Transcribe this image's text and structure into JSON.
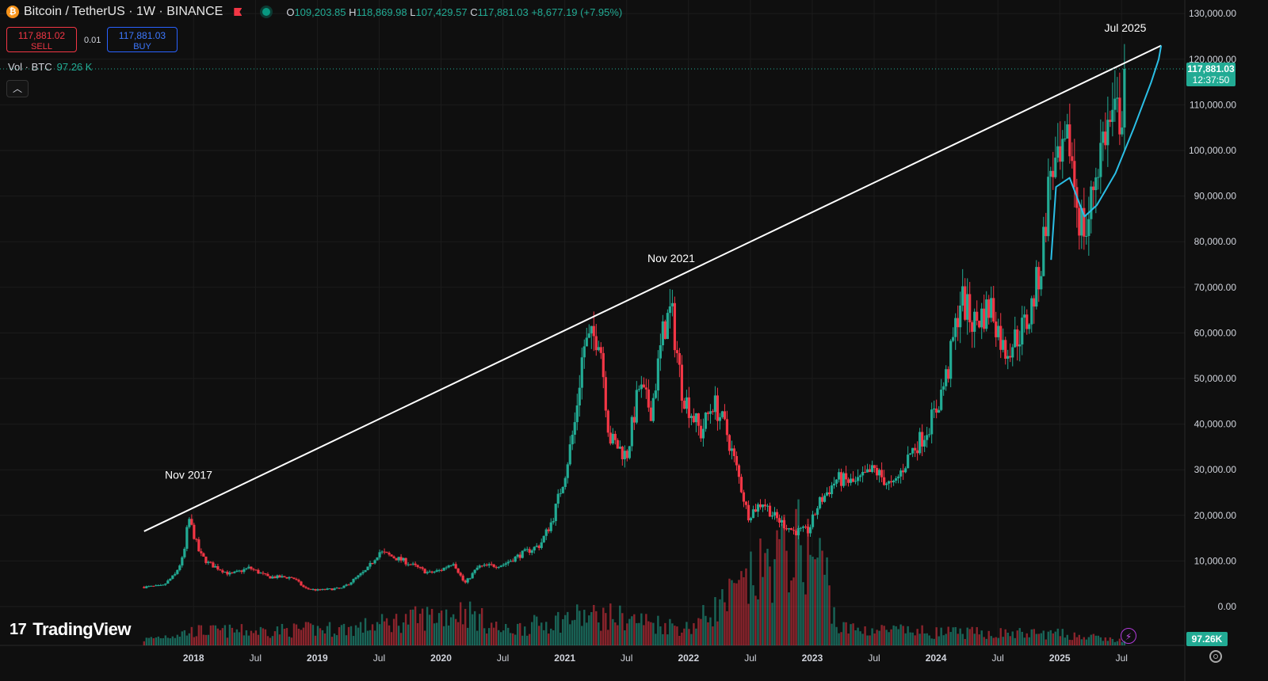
{
  "header": {
    "coin_icon": "bitcoin-icon",
    "symbol_title": "Bitcoin / TetherUS · 1W · BINANCE",
    "ohlc": {
      "o_label": "O",
      "o_value": "109,203.85",
      "h_label": "H",
      "h_value": "118,869.98",
      "l_label": "L",
      "l_value": "107,429.57",
      "c_label": "C",
      "c_value": "117,881.03",
      "change": "+8,677.19 (+7.95%)"
    }
  },
  "trade": {
    "sell_price": "117,881.02",
    "sell_label": "SELL",
    "spread": "0.01",
    "buy_price": "117,881.03",
    "buy_label": "BUY"
  },
  "volume_legend": {
    "label": "Vol · BTC",
    "value": "97.26 K"
  },
  "collapse_icon": "chevron-up-icon",
  "brand": "TradingView",
  "price_badge": {
    "price": "117,881.03",
    "countdown": "12:37:50"
  },
  "volume_badge": "97.26K",
  "colors": {
    "up": "#22ab94",
    "down": "#f23645",
    "trendline": "#ffffff",
    "curve": "#2bbfe6",
    "background": "#0f0f0f"
  },
  "chart_data": {
    "type": "candlestick",
    "title": "Bitcoin / TetherUS · 1W · BINANCE",
    "y_axis": {
      "ticks": [
        0,
        10000,
        20000,
        30000,
        40000,
        50000,
        60000,
        70000,
        80000,
        90000,
        100000,
        110000,
        120000,
        130000
      ],
      "tick_labels": [
        "0.00",
        "10,000.00",
        "20,000.00",
        "30,000.00",
        "40,000.00",
        "50,000.00",
        "60,000.00",
        "70,000.00",
        "80,000.00",
        "90,000.00",
        "100,000.00",
        "110,000.00",
        "120,000.00",
        "130,000.00"
      ],
      "ylim": [
        0,
        130000
      ]
    },
    "x_axis": {
      "tick_labels": [
        {
          "t": 2018.0,
          "label": "2018",
          "bold": true
        },
        {
          "t": 2018.5,
          "label": "Jul",
          "bold": false
        },
        {
          "t": 2019.0,
          "label": "2019",
          "bold": true
        },
        {
          "t": 2019.5,
          "label": "Jul",
          "bold": false
        },
        {
          "t": 2020.0,
          "label": "2020",
          "bold": true
        },
        {
          "t": 2020.5,
          "label": "Jul",
          "bold": false
        },
        {
          "t": 2021.0,
          "label": "2021",
          "bold": true
        },
        {
          "t": 2021.5,
          "label": "Jul",
          "bold": false
        },
        {
          "t": 2022.0,
          "label": "2022",
          "bold": true
        },
        {
          "t": 2022.5,
          "label": "Jul",
          "bold": false
        },
        {
          "t": 2023.0,
          "label": "2023",
          "bold": true
        },
        {
          "t": 2023.5,
          "label": "Jul",
          "bold": false
        },
        {
          "t": 2024.0,
          "label": "2024",
          "bold": true
        },
        {
          "t": 2024.5,
          "label": "Jul",
          "bold": false
        },
        {
          "t": 2025.0,
          "label": "2025",
          "bold": true
        },
        {
          "t": 2025.5,
          "label": "Jul",
          "bold": false
        }
      ],
      "range": [
        2017.55,
        2025.62
      ]
    },
    "price_path": [
      {
        "t": 2017.6,
        "v": 4300
      },
      {
        "t": 2017.75,
        "v": 4500
      },
      {
        "t": 2017.85,
        "v": 7000
      },
      {
        "t": 2017.92,
        "v": 11000
      },
      {
        "t": 2017.96,
        "v": 19500
      },
      {
        "t": 2018.05,
        "v": 11500
      },
      {
        "t": 2018.12,
        "v": 9500
      },
      {
        "t": 2018.3,
        "v": 7000
      },
      {
        "t": 2018.45,
        "v": 8500
      },
      {
        "t": 2018.6,
        "v": 6500
      },
      {
        "t": 2018.8,
        "v": 6400
      },
      {
        "t": 2018.9,
        "v": 4000
      },
      {
        "t": 2019.0,
        "v": 3600
      },
      {
        "t": 2019.2,
        "v": 4000
      },
      {
        "t": 2019.4,
        "v": 8000
      },
      {
        "t": 2019.5,
        "v": 12000
      },
      {
        "t": 2019.7,
        "v": 10000
      },
      {
        "t": 2019.9,
        "v": 7300
      },
      {
        "t": 2020.0,
        "v": 8000
      },
      {
        "t": 2020.1,
        "v": 9800
      },
      {
        "t": 2020.19,
        "v": 5000
      },
      {
        "t": 2020.3,
        "v": 8700
      },
      {
        "t": 2020.5,
        "v": 9200
      },
      {
        "t": 2020.65,
        "v": 11500
      },
      {
        "t": 2020.8,
        "v": 13500
      },
      {
        "t": 2020.9,
        "v": 19000
      },
      {
        "t": 2021.0,
        "v": 29000
      },
      {
        "t": 2021.08,
        "v": 40000
      },
      {
        "t": 2021.15,
        "v": 57000
      },
      {
        "t": 2021.28,
        "v": 60000
      },
      {
        "t": 2021.36,
        "v": 37000
      },
      {
        "t": 2021.5,
        "v": 33000
      },
      {
        "t": 2021.6,
        "v": 48000
      },
      {
        "t": 2021.7,
        "v": 43000
      },
      {
        "t": 2021.8,
        "v": 61000
      },
      {
        "t": 2021.86,
        "v": 65000
      },
      {
        "t": 2021.95,
        "v": 47000
      },
      {
        "t": 2022.1,
        "v": 38000
      },
      {
        "t": 2022.2,
        "v": 45000
      },
      {
        "t": 2022.3,
        "v": 39000
      },
      {
        "t": 2022.4,
        "v": 29000
      },
      {
        "t": 2022.48,
        "v": 20000
      },
      {
        "t": 2022.6,
        "v": 23000
      },
      {
        "t": 2022.7,
        "v": 19500
      },
      {
        "t": 2022.85,
        "v": 16500
      },
      {
        "t": 2022.97,
        "v": 16600
      },
      {
        "t": 2023.05,
        "v": 22500
      },
      {
        "t": 2023.2,
        "v": 28000
      },
      {
        "t": 2023.35,
        "v": 27000
      },
      {
        "t": 2023.5,
        "v": 30000
      },
      {
        "t": 2023.65,
        "v": 26000
      },
      {
        "t": 2023.8,
        "v": 34000
      },
      {
        "t": 2023.9,
        "v": 37500
      },
      {
        "t": 2024.0,
        "v": 43000
      },
      {
        "t": 2024.1,
        "v": 52000
      },
      {
        "t": 2024.2,
        "v": 68000
      },
      {
        "t": 2024.3,
        "v": 62000
      },
      {
        "t": 2024.45,
        "v": 66000
      },
      {
        "t": 2024.55,
        "v": 56000
      },
      {
        "t": 2024.65,
        "v": 59000
      },
      {
        "t": 2024.75,
        "v": 63000
      },
      {
        "t": 2024.85,
        "v": 75000
      },
      {
        "t": 2024.93,
        "v": 97000
      },
      {
        "t": 2025.0,
        "v": 95000
      },
      {
        "t": 2025.08,
        "v": 102000
      },
      {
        "t": 2025.15,
        "v": 86000
      },
      {
        "t": 2025.22,
        "v": 82000
      },
      {
        "t": 2025.28,
        "v": 94000
      },
      {
        "t": 2025.36,
        "v": 104000
      },
      {
        "t": 2025.45,
        "v": 107000
      },
      {
        "t": 2025.5,
        "v": 108500
      },
      {
        "t": 2025.53,
        "v": 117881
      }
    ],
    "volume_path": [
      {
        "t": 2017.6,
        "v": 0.4
      },
      {
        "t": 2018.0,
        "v": 1.0
      },
      {
        "t": 2018.5,
        "v": 1.0
      },
      {
        "t": 2019.3,
        "v": 1.2
      },
      {
        "t": 2020.19,
        "v": 2.4
      },
      {
        "t": 2020.5,
        "v": 1.0
      },
      {
        "t": 2021.1,
        "v": 2.0
      },
      {
        "t": 2021.4,
        "v": 2.0
      },
      {
        "t": 2022.0,
        "v": 1.2
      },
      {
        "t": 2022.45,
        "v": 4.0
      },
      {
        "t": 2022.7,
        "v": 6.0
      },
      {
        "t": 2022.9,
        "v": 7.0
      },
      {
        "t": 2023.1,
        "v": 5.5
      },
      {
        "t": 2023.2,
        "v": 1.2
      },
      {
        "t": 2024.0,
        "v": 0.9
      },
      {
        "t": 2025.0,
        "v": 0.8
      },
      {
        "t": 2025.53,
        "v": 0.3
      }
    ],
    "trendline": [
      {
        "t": 2017.6,
        "v": 16500
      },
      {
        "t": 2025.82,
        "v": 123000
      }
    ],
    "curve": [
      {
        "t": 2024.93,
        "v": 76000
      },
      {
        "t": 2024.97,
        "v": 92000
      },
      {
        "t": 2025.08,
        "v": 94000
      },
      {
        "t": 2025.2,
        "v": 85500
      },
      {
        "t": 2025.3,
        "v": 88000
      },
      {
        "t": 2025.45,
        "v": 95000
      },
      {
        "t": 2025.6,
        "v": 105000
      },
      {
        "t": 2025.74,
        "v": 115000
      },
      {
        "t": 2025.8,
        "v": 120000
      },
      {
        "t": 2025.82,
        "v": 123000
      }
    ],
    "annotations": [
      {
        "text": "Nov 2017",
        "t": 2017.96,
        "v": 28000
      },
      {
        "text": "Nov 2021",
        "t": 2021.86,
        "v": 75500
      },
      {
        "text": "Jul 2025",
        "t": 2025.53,
        "v": 126000
      }
    ],
    "last_price": 117881.03,
    "grid": true,
    "legend": "top-left"
  }
}
